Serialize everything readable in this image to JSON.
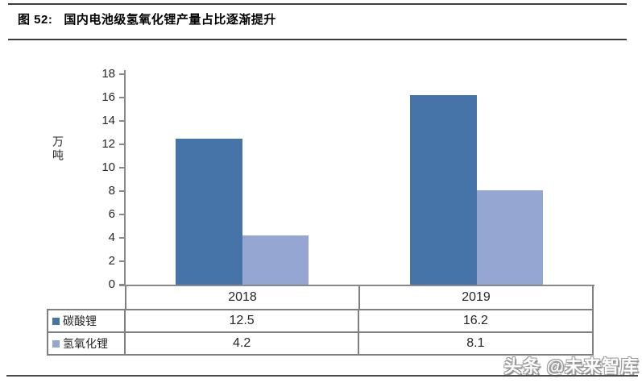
{
  "figure": {
    "caption_prefix": "图 52:",
    "caption_title": "国内电池级氢氧化锂产量占比逐渐提升"
  },
  "watermark": "头条 @未来智库",
  "colors": {
    "series_dark_blue": "#4673a8",
    "series_light_blue": "#95a6d3",
    "axis_gray": "#898989",
    "table_border_gray": "#808080"
  },
  "chart_data": {
    "type": "bar",
    "title": "图 52: 国内电池级氢氧化锂产量占比逐渐提升",
    "categories": [
      "2018",
      "2019"
    ],
    "series": [
      {
        "name": "碳酸锂",
        "values": [
          12.5,
          16.2
        ],
        "color": "#4673a8"
      },
      {
        "name": "氢氧化锂",
        "values": [
          4.2,
          8.1
        ],
        "color": "#95a6d3"
      }
    ],
    "xlabel": "",
    "ylabel": "万吨",
    "ylim": [
      0,
      18
    ],
    "yticks": [
      0,
      2,
      4,
      6,
      8,
      10,
      12,
      14,
      16,
      18
    ],
    "grid": false,
    "legend_position": "data-table-below-chart",
    "data_table": true
  }
}
